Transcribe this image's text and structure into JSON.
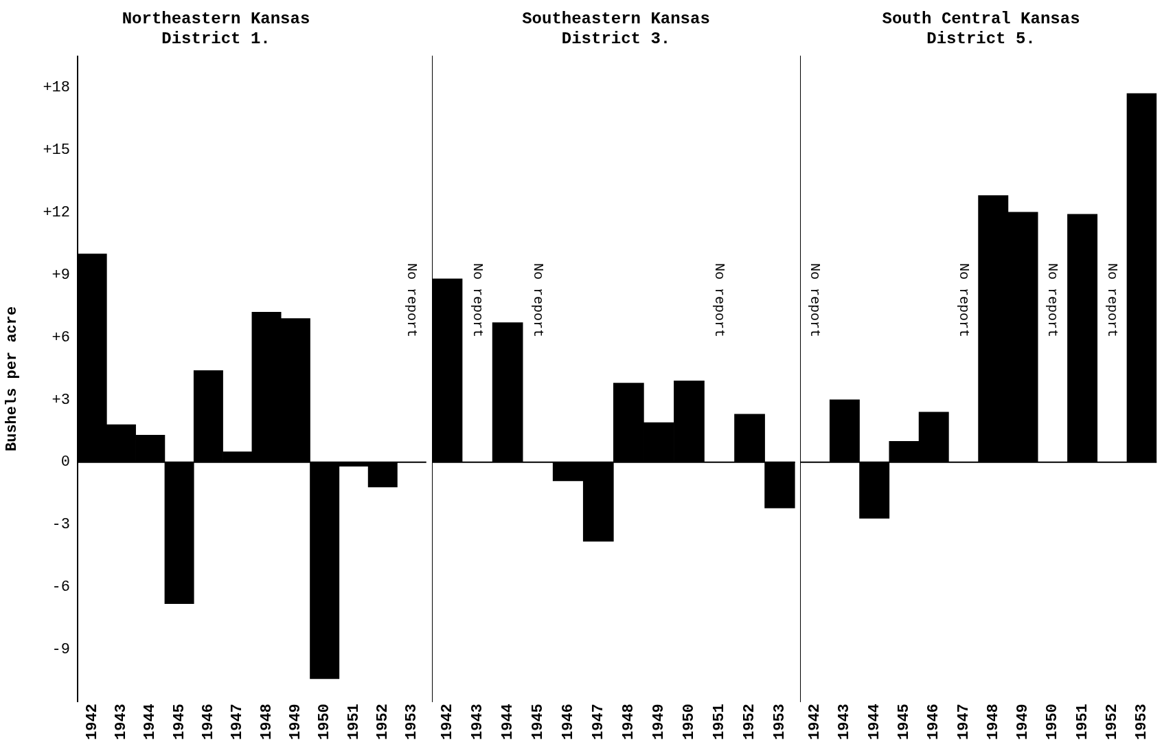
{
  "chart_data": [
    {
      "type": "bar",
      "title": "Northeastern Kansas\nDistrict 1.",
      "ylabel": "Bushels per acre",
      "categories": [
        "1942",
        "1943",
        "1944",
        "1945",
        "1946",
        "1947",
        "1948",
        "1949",
        "1950",
        "1951",
        "1952",
        "1953"
      ],
      "series": [
        {
          "color": "#000000",
          "values": [
            10,
            1.8,
            1.3,
            -6.8,
            4.4,
            0.5,
            7.2,
            6.9,
            -10.4,
            -0.2,
            -1.2,
            null
          ]
        }
      ],
      "ylim": [
        -11.5,
        19.5
      ],
      "yticks": [
        {
          "value": 18,
          "label": "+18"
        },
        {
          "value": 15,
          "label": "+15"
        },
        {
          "value": 12,
          "label": "+12"
        },
        {
          "value": 9,
          "label": "+9"
        },
        {
          "value": 6,
          "label": "+6"
        },
        {
          "value": 3,
          "label": "+3"
        },
        0,
        -3,
        -6,
        -9
      ],
      "annotations": [
        "No report"
      ],
      "ref_lines": [
        {
          "axis": "y",
          "value": 0
        }
      ],
      "grid": false,
      "legend": false
    },
    {
      "type": "bar",
      "title": "Southeastern Kansas\nDistrict 3.",
      "categories": [
        "1942",
        "1943",
        "1944",
        "1945",
        "1946",
        "1947",
        "1948",
        "1949",
        "1950",
        "1951",
        "1952",
        "1953"
      ],
      "series": [
        {
          "color": "#000000",
          "values": [
            8.8,
            null,
            6.7,
            null,
            -0.9,
            -3.8,
            3.8,
            1.9,
            3.9,
            null,
            2.3,
            -2.2
          ]
        }
      ],
      "ylim": [
        -11.5,
        19.5
      ],
      "tick_labels": "x",
      "annotations": [
        "No report",
        "No report",
        "No report"
      ],
      "ref_lines": [
        {
          "axis": "y",
          "value": 0
        }
      ],
      "grid": false,
      "legend": false
    },
    {
      "type": "bar",
      "title": "South Central Kansas\nDistrict 5.",
      "categories": [
        "1942",
        "1943",
        "1944",
        "1945",
        "1946",
        "1947",
        "1948",
        "1949",
        "1950",
        "1951",
        "1952",
        "1953"
      ],
      "series": [
        {
          "color": "#000000",
          "values": [
            null,
            3.0,
            -2.7,
            1.0,
            2.4,
            null,
            12.8,
            12.0,
            null,
            11.9,
            null,
            17.7
          ]
        }
      ],
      "ylim": [
        -11.5,
        19.5
      ],
      "tick_labels": "x",
      "annotations": [
        "No report",
        "No report",
        "No report",
        "No report"
      ],
      "ref_lines": [
        {
          "axis": "y",
          "value": 0
        }
      ],
      "grid": false,
      "legend": false
    }
  ]
}
